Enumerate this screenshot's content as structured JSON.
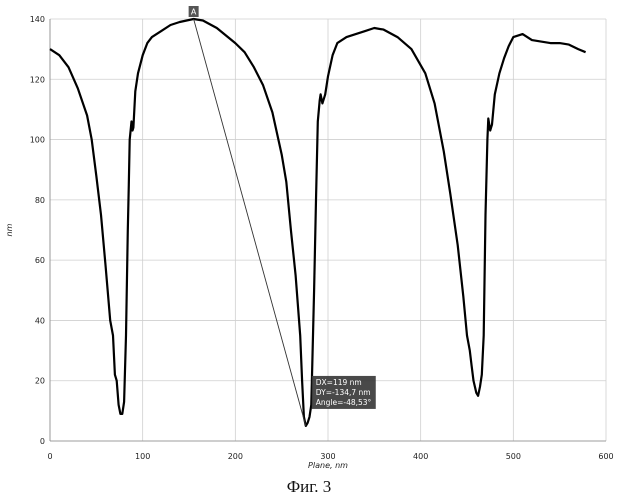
{
  "chart_data": {
    "type": "line",
    "title": "",
    "xlabel": "Plane, nm",
    "ylabel": "nm",
    "xlim": [
      0,
      600
    ],
    "ylim": [
      0,
      140
    ],
    "x_ticks": [
      0,
      100,
      200,
      300,
      400,
      500,
      600
    ],
    "y_ticks": [
      0,
      20,
      40,
      60,
      80,
      100,
      120,
      140
    ],
    "grid": true,
    "series": [
      {
        "color": "#000000",
        "points": [
          [
            0,
            130
          ],
          [
            10,
            128
          ],
          [
            20,
            124
          ],
          [
            30,
            117
          ],
          [
            40,
            108
          ],
          [
            45,
            100
          ],
          [
            50,
            88
          ],
          [
            55,
            75
          ],
          [
            60,
            58
          ],
          [
            65,
            40
          ],
          [
            68,
            35
          ],
          [
            70,
            22
          ],
          [
            72,
            20
          ],
          [
            74,
            12
          ],
          [
            76,
            9
          ],
          [
            78,
            9
          ],
          [
            80,
            13
          ],
          [
            82,
            35
          ],
          [
            84,
            70
          ],
          [
            85,
            85
          ],
          [
            86,
            100
          ],
          [
            88,
            106
          ],
          [
            89,
            103
          ],
          [
            90,
            104
          ],
          [
            92,
            116
          ],
          [
            95,
            122
          ],
          [
            100,
            128
          ],
          [
            105,
            132
          ],
          [
            110,
            134
          ],
          [
            120,
            136
          ],
          [
            130,
            138
          ],
          [
            140,
            139
          ],
          [
            155,
            140
          ],
          [
            165,
            139.5
          ],
          [
            180,
            137
          ],
          [
            200,
            132
          ],
          [
            210,
            129
          ],
          [
            220,
            124
          ],
          [
            230,
            118
          ],
          [
            240,
            109
          ],
          [
            250,
            95
          ],
          [
            255,
            86
          ],
          [
            260,
            70
          ],
          [
            265,
            55
          ],
          [
            270,
            35
          ],
          [
            272,
            20
          ],
          [
            274,
            8
          ],
          [
            276,
            5
          ],
          [
            278,
            6
          ],
          [
            280,
            8
          ],
          [
            282,
            12
          ],
          [
            285,
            50
          ],
          [
            287,
            80
          ],
          [
            289,
            106
          ],
          [
            291,
            113
          ],
          [
            292,
            115
          ],
          [
            294,
            112
          ],
          [
            297,
            115
          ],
          [
            300,
            121
          ],
          [
            305,
            128
          ],
          [
            310,
            132
          ],
          [
            320,
            134
          ],
          [
            330,
            135
          ],
          [
            340,
            136
          ],
          [
            350,
            137
          ],
          [
            360,
            136.5
          ],
          [
            375,
            134
          ],
          [
            390,
            130
          ],
          [
            405,
            122
          ],
          [
            415,
            112
          ],
          [
            425,
            96
          ],
          [
            432,
            82
          ],
          [
            440,
            65
          ],
          [
            446,
            48
          ],
          [
            450,
            35
          ],
          [
            453,
            30
          ],
          [
            455,
            25
          ],
          [
            457,
            20
          ],
          [
            460,
            16
          ],
          [
            462,
            15
          ],
          [
            464,
            18
          ],
          [
            466,
            22
          ],
          [
            468,
            35
          ],
          [
            470,
            75
          ],
          [
            472,
            100
          ],
          [
            473,
            107
          ],
          [
            475,
            103
          ],
          [
            477,
            105
          ],
          [
            480,
            115
          ],
          [
            485,
            122
          ],
          [
            490,
            127
          ],
          [
            495,
            131
          ],
          [
            500,
            134
          ],
          [
            510,
            135
          ],
          [
            520,
            133
          ],
          [
            530,
            132.5
          ],
          [
            540,
            132
          ],
          [
            550,
            132
          ],
          [
            560,
            131.5
          ],
          [
            570,
            130
          ],
          [
            578,
            129
          ]
        ]
      }
    ],
    "marker": {
      "label": "A",
      "x": 155,
      "y": 140
    },
    "measurement": {
      "from": [
        155,
        140
      ],
      "to": [
        276,
        5
      ],
      "lines": [
        "DX=119 nm",
        "DY=-134,7 nm",
        "Angle=-48,53°"
      ]
    }
  },
  "caption": "Фиг. 3"
}
